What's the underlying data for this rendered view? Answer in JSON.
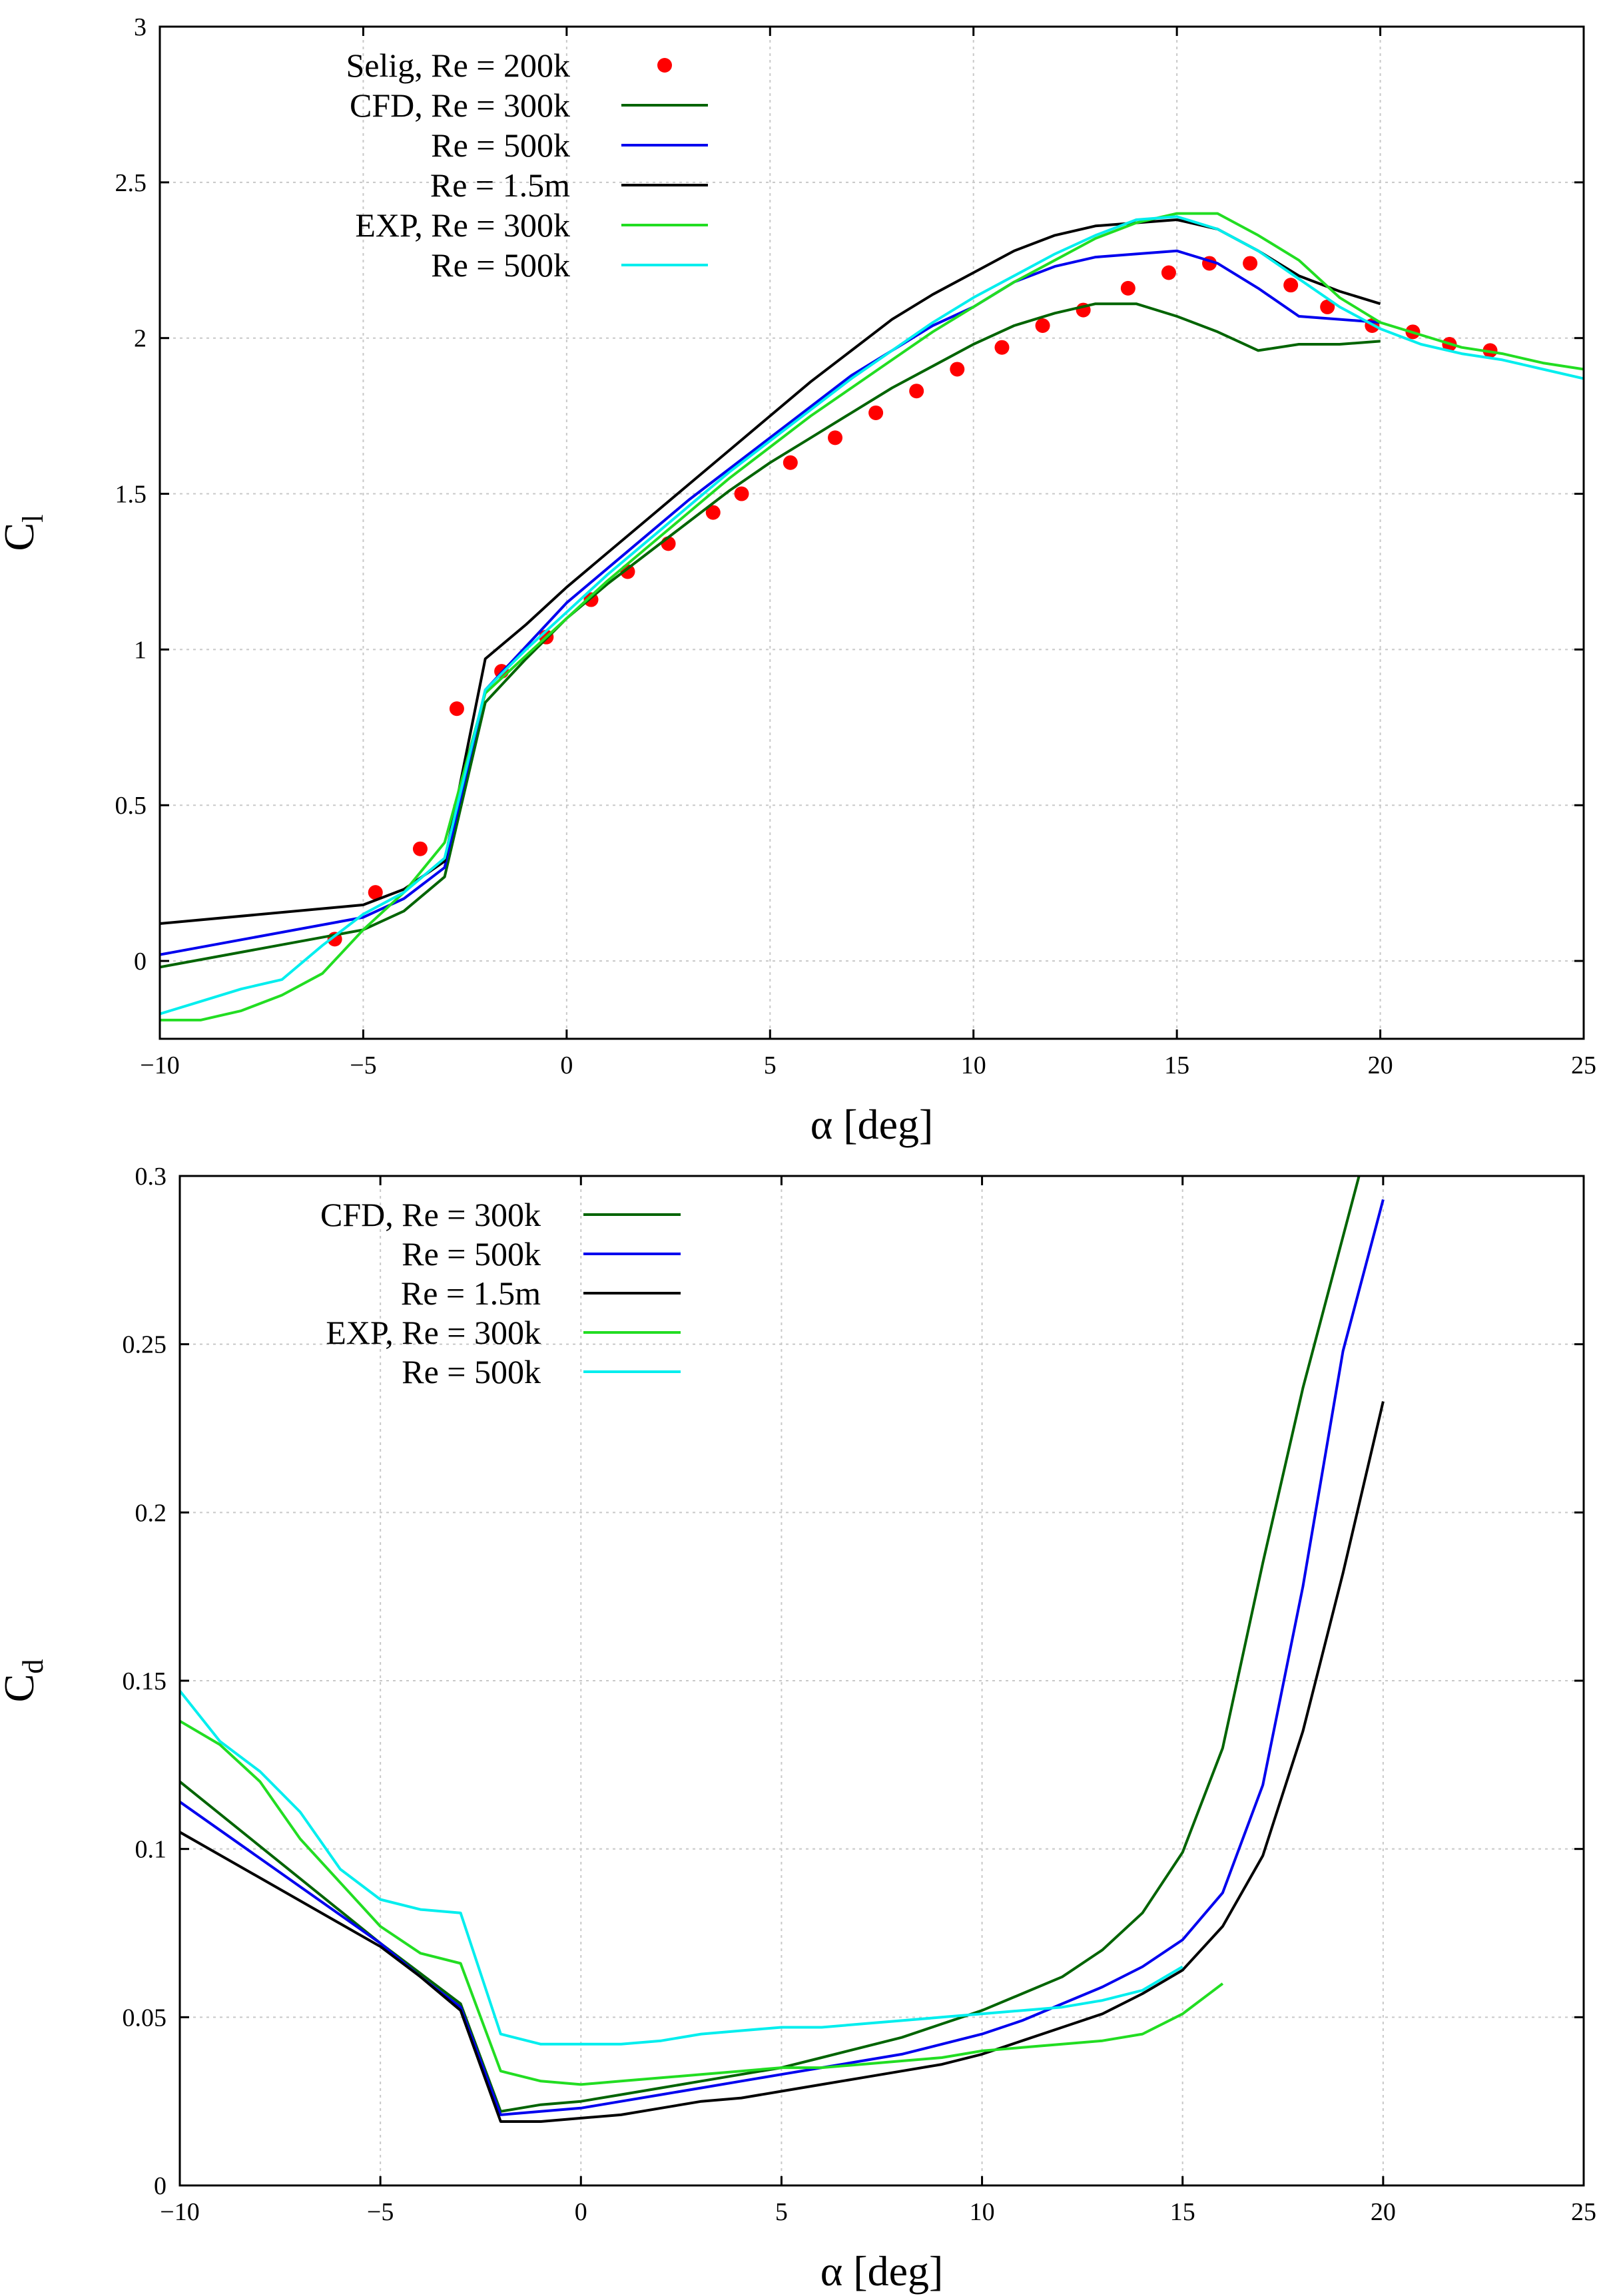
{
  "chart_data": [
    {
      "type": "line",
      "id": "cl",
      "ylabel_main": "C",
      "ylabel_sub": "l",
      "xlabel": "α [deg]",
      "xlim": [
        -10,
        25
      ],
      "ylim": [
        -0.25,
        3
      ],
      "xticks": [
        -10,
        -5,
        0,
        5,
        10,
        15,
        20,
        25
      ],
      "yticks": [
        0,
        0.5,
        1,
        1.5,
        2,
        2.5,
        3
      ],
      "xtick_labels": [
        "−10",
        "−5",
        "0",
        "5",
        "10",
        "15",
        "20",
        "25"
      ],
      "ytick_labels": [
        "0",
        "0.5",
        "1",
        "1.5",
        "2",
        "2.5",
        "3"
      ],
      "grid": true,
      "legend_position": "top-left",
      "series": [
        {
          "name": "Selig, Re = 200k",
          "kind": "scatter",
          "color": "#ff0000",
          "x": [
            -5.7,
            -4.7,
            -3.6,
            -2.7,
            -1.6,
            -0.5,
            0.6,
            1.5,
            2.5,
            3.6,
            4.3,
            5.5,
            6.6,
            7.6,
            8.6,
            9.6,
            10.7,
            11.7,
            12.7,
            13.8,
            14.8,
            15.8,
            16.8,
            17.8,
            18.7,
            19.8,
            20.8,
            21.7,
            22.7
          ],
          "y": [
            0.07,
            0.22,
            0.36,
            0.81,
            0.93,
            1.04,
            1.16,
            1.25,
            1.34,
            1.44,
            1.5,
            1.6,
            1.68,
            1.76,
            1.83,
            1.9,
            1.97,
            2.04,
            2.09,
            2.16,
            2.21,
            2.24,
            2.24,
            2.17,
            2.1,
            2.04,
            2.02,
            1.98,
            1.96
          ]
        },
        {
          "name": "CFD, Re = 300k",
          "kind": "line",
          "color": "#006400",
          "x": [
            -10,
            -5,
            -4,
            -3,
            -2,
            -1,
            0,
            1,
            2,
            3,
            4,
            5,
            6,
            7,
            8,
            9,
            10,
            11,
            12,
            13,
            14,
            15,
            16,
            17,
            18,
            19,
            20
          ],
          "y": [
            -0.02,
            0.1,
            0.16,
            0.27,
            0.83,
            0.97,
            1.1,
            1.21,
            1.31,
            1.41,
            1.51,
            1.6,
            1.68,
            1.76,
            1.84,
            1.91,
            1.98,
            2.04,
            2.08,
            2.11,
            2.11,
            2.07,
            2.02,
            1.96,
            1.98,
            1.98,
            1.99
          ]
        },
        {
          "name": "Re = 500k",
          "kind": "line",
          "color": "#0000ee",
          "x": [
            -10,
            -5,
            -4,
            -3,
            -2,
            -1,
            0,
            1,
            2,
            3,
            4,
            5,
            6,
            7,
            8,
            9,
            10,
            11,
            12,
            13,
            14,
            15,
            16,
            17,
            18,
            19,
            20
          ],
          "y": [
            0.02,
            0.14,
            0.2,
            0.3,
            0.87,
            1.01,
            1.15,
            1.26,
            1.37,
            1.48,
            1.58,
            1.68,
            1.78,
            1.88,
            1.96,
            2.04,
            2.1,
            2.18,
            2.23,
            2.26,
            2.27,
            2.28,
            2.24,
            2.16,
            2.07,
            2.06,
            2.05
          ]
        },
        {
          "name": "Re = 1.5m",
          "kind": "line",
          "color": "#000000",
          "x": [
            -10,
            -5,
            -4,
            -3,
            -2,
            -1,
            0,
            1,
            2,
            3,
            4,
            5,
            6,
            7,
            8,
            9,
            10,
            11,
            12,
            13,
            14,
            15,
            16,
            17,
            18,
            19,
            20
          ],
          "y": [
            0.12,
            0.18,
            0.23,
            0.32,
            0.97,
            1.08,
            1.2,
            1.31,
            1.42,
            1.53,
            1.64,
            1.75,
            1.86,
            1.96,
            2.06,
            2.14,
            2.21,
            2.28,
            2.33,
            2.36,
            2.37,
            2.38,
            2.35,
            2.28,
            2.2,
            2.15,
            2.11
          ]
        },
        {
          "name": "EXP, Re = 300k",
          "kind": "line",
          "color": "#22dd22",
          "x": [
            -10,
            -9,
            -8,
            -7,
            -6,
            -5,
            -4,
            -3,
            -2,
            -1,
            0,
            1,
            2,
            3,
            4,
            5,
            6,
            7,
            8,
            9,
            10,
            11,
            12,
            13,
            14,
            15,
            16,
            17,
            18,
            19,
            20,
            21,
            22,
            23,
            24,
            25
          ],
          "y": [
            -0.19,
            -0.19,
            -0.16,
            -0.11,
            -0.04,
            0.1,
            0.22,
            0.38,
            0.86,
            0.98,
            1.1,
            1.22,
            1.33,
            1.44,
            1.55,
            1.65,
            1.75,
            1.84,
            1.93,
            2.02,
            2.1,
            2.18,
            2.25,
            2.32,
            2.37,
            2.4,
            2.4,
            2.33,
            2.25,
            2.13,
            2.05,
            2.01,
            1.97,
            1.95,
            1.92,
            1.9
          ]
        },
        {
          "name": "Re = 500k",
          "kind": "line",
          "color": "#00eeee",
          "x": [
            -10,
            -9,
            -8,
            -7,
            -6,
            -5,
            -4,
            -3,
            -2,
            -1,
            0,
            1,
            2,
            3,
            4,
            5,
            6,
            7,
            8,
            9,
            10,
            11,
            12,
            13,
            14,
            15,
            16,
            17,
            18,
            19,
            20,
            21,
            22,
            23,
            24,
            25
          ],
          "y": [
            -0.17,
            -0.13,
            -0.09,
            -0.06,
            0.05,
            0.15,
            0.22,
            0.33,
            0.87,
            1.0,
            1.12,
            1.24,
            1.35,
            1.46,
            1.57,
            1.67,
            1.77,
            1.87,
            1.96,
            2.05,
            2.13,
            2.2,
            2.27,
            2.33,
            2.38,
            2.39,
            2.35,
            2.28,
            2.19,
            2.1,
            2.03,
            1.98,
            1.95,
            1.93,
            1.9,
            1.87
          ]
        }
      ]
    },
    {
      "type": "line",
      "id": "cd",
      "ylabel_main": "C",
      "ylabel_sub": "d",
      "xlabel": "α [deg]",
      "xlim": [
        -10,
        25
      ],
      "ylim": [
        0,
        0.3
      ],
      "xticks": [
        -10,
        -5,
        0,
        5,
        10,
        15,
        20,
        25
      ],
      "yticks": [
        0,
        0.05,
        0.1,
        0.15,
        0.2,
        0.25,
        0.3
      ],
      "xtick_labels": [
        "−10",
        "−5",
        "0",
        "5",
        "10",
        "15",
        "20",
        "25"
      ],
      "ytick_labels": [
        "0",
        "0.05",
        "0.1",
        "0.15",
        "0.2",
        "0.25",
        "0.3"
      ],
      "grid": true,
      "legend_position": "top-left",
      "series": [
        {
          "name": "CFD, Re = 300k",
          "kind": "line",
          "color": "#006400",
          "x": [
            -10,
            -5,
            -4,
            -3,
            -2,
            -1,
            0,
            1,
            2,
            3,
            4,
            5,
            6,
            7,
            8,
            9,
            10,
            11,
            12,
            13,
            14,
            15,
            16,
            17,
            18,
            19,
            19.4
          ],
          "y": [
            0.12,
            0.072,
            0.063,
            0.054,
            0.022,
            0.024,
            0.025,
            0.027,
            0.029,
            0.031,
            0.033,
            0.035,
            0.038,
            0.041,
            0.044,
            0.048,
            0.052,
            0.057,
            0.062,
            0.07,
            0.081,
            0.099,
            0.13,
            0.185,
            0.237,
            0.282,
            0.3
          ]
        },
        {
          "name": "Re = 500k",
          "kind": "line",
          "color": "#0000ee",
          "x": [
            -10,
            -5,
            -4,
            -3,
            -2,
            -1,
            0,
            1,
            2,
            3,
            4,
            5,
            6,
            7,
            8,
            9,
            10,
            11,
            12,
            13,
            14,
            15,
            16,
            17,
            18,
            19,
            20
          ],
          "y": [
            0.114,
            0.072,
            0.062,
            0.053,
            0.021,
            0.022,
            0.023,
            0.025,
            0.027,
            0.029,
            0.031,
            0.033,
            0.035,
            0.037,
            0.039,
            0.042,
            0.045,
            0.049,
            0.054,
            0.059,
            0.065,
            0.073,
            0.087,
            0.119,
            0.178,
            0.248,
            0.293
          ]
        },
        {
          "name": "Re = 1.5m",
          "kind": "line",
          "color": "#000000",
          "x": [
            -10,
            -5,
            -4,
            -3,
            -2,
            -1,
            0,
            1,
            2,
            3,
            4,
            5,
            6,
            7,
            8,
            9,
            10,
            11,
            12,
            13,
            14,
            15,
            16,
            17,
            18,
            19,
            20
          ],
          "y": [
            0.105,
            0.071,
            0.062,
            0.052,
            0.019,
            0.019,
            0.02,
            0.021,
            0.023,
            0.025,
            0.026,
            0.028,
            0.03,
            0.032,
            0.034,
            0.036,
            0.039,
            0.043,
            0.047,
            0.051,
            0.057,
            0.064,
            0.077,
            0.098,
            0.135,
            0.182,
            0.233
          ]
        },
        {
          "name": "EXP, Re = 300k",
          "kind": "line",
          "color": "#22dd22",
          "x": [
            -10,
            -9,
            -8,
            -7,
            -6,
            -5,
            -4,
            -3,
            -2,
            -1,
            0,
            1,
            2,
            3,
            4,
            5,
            6,
            7,
            8,
            9,
            10,
            11,
            12,
            13,
            14,
            15,
            16
          ],
          "y": [
            0.138,
            0.131,
            0.12,
            0.103,
            0.09,
            0.077,
            0.069,
            0.066,
            0.034,
            0.031,
            0.03,
            0.031,
            0.032,
            0.033,
            0.034,
            0.035,
            0.035,
            0.036,
            0.037,
            0.038,
            0.04,
            0.041,
            0.042,
            0.043,
            0.045,
            0.051,
            0.06
          ]
        },
        {
          "name": "Re = 500k",
          "kind": "line",
          "color": "#00eeee",
          "x": [
            -10,
            -9,
            -8,
            -7,
            -6,
            -5,
            -4,
            -3,
            -2,
            -1,
            0,
            1,
            2,
            3,
            4,
            5,
            6,
            7,
            8,
            9,
            10,
            11,
            12,
            13,
            14,
            15
          ],
          "y": [
            0.147,
            0.132,
            0.123,
            0.111,
            0.094,
            0.085,
            0.082,
            0.081,
            0.045,
            0.042,
            0.042,
            0.042,
            0.043,
            0.045,
            0.046,
            0.047,
            0.047,
            0.048,
            0.049,
            0.05,
            0.051,
            0.052,
            0.053,
            0.055,
            0.058,
            0.065
          ]
        }
      ]
    }
  ]
}
